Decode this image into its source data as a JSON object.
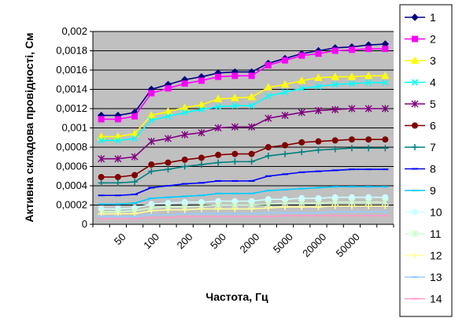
{
  "chart_data": {
    "type": "line",
    "xlabel": "Частота, Гц",
    "ylabel": "Активна складова провідності, См",
    "ylim": [
      0,
      0.002
    ],
    "ytick_values": [
      0,
      0.0002,
      0.0004,
      0.0006,
      0.0008,
      0.001,
      0.0012,
      0.0014,
      0.0016,
      0.0018,
      0.002
    ],
    "ytick_labels": [
      "0",
      "0,0002",
      "0,0004",
      "0,0006",
      "0,0008",
      "0,001",
      "0,0012",
      "0,0014",
      "0,0016",
      "0,0018",
      "0,002"
    ],
    "point_count": 18,
    "x_tick_labels": [
      "50",
      "100",
      "200",
      "500",
      "2000",
      "5000",
      "20000",
      "50000"
    ],
    "x_tick_positions": [
      1,
      3,
      5,
      7,
      9,
      11,
      13,
      15
    ],
    "grid": "horizontal",
    "plot_background": "#c0c0c0",
    "legend_position": "right",
    "series": [
      {
        "name": "1",
        "color": "#000080",
        "marker": "diamond",
        "values": [
          0.00113,
          0.00113,
          0.00116,
          0.0014,
          0.00145,
          0.0015,
          0.00153,
          0.00157,
          0.00158,
          0.00158,
          0.00167,
          0.00172,
          0.00177,
          0.0018,
          0.00183,
          0.00184,
          0.00186,
          0.00187
        ]
      },
      {
        "name": "2",
        "color": "#ff00ff",
        "marker": "square",
        "values": [
          0.00109,
          0.00109,
          0.00112,
          0.00136,
          0.00141,
          0.00146,
          0.00149,
          0.00153,
          0.00154,
          0.00154,
          0.00165,
          0.0017,
          0.00175,
          0.00177,
          0.0018,
          0.00181,
          0.00182,
          0.00182
        ]
      },
      {
        "name": "3",
        "color": "#ffff00",
        "marker": "triangle",
        "values": [
          0.00091,
          0.00091,
          0.00094,
          0.00113,
          0.00117,
          0.00121,
          0.00124,
          0.0013,
          0.00131,
          0.00132,
          0.00142,
          0.00145,
          0.00149,
          0.00152,
          0.00153,
          0.00153,
          0.00154,
          0.00154
        ]
      },
      {
        "name": "4",
        "color": "#00ffff",
        "marker": "x",
        "values": [
          0.00087,
          0.00087,
          0.00089,
          0.00108,
          0.00112,
          0.00116,
          0.00119,
          0.00122,
          0.00123,
          0.00123,
          0.00133,
          0.00137,
          0.00141,
          0.00143,
          0.00145,
          0.00146,
          0.00147,
          0.00147
        ]
      },
      {
        "name": "5",
        "color": "#800080",
        "marker": "star",
        "values": [
          0.00068,
          0.00068,
          0.0007,
          0.00086,
          0.00089,
          0.00093,
          0.00095,
          0.001,
          0.00101,
          0.00101,
          0.0011,
          0.00113,
          0.00116,
          0.00118,
          0.00119,
          0.0012,
          0.0012,
          0.0012
        ]
      },
      {
        "name": "6",
        "color": "#800000",
        "marker": "circle",
        "values": [
          0.00049,
          0.00049,
          0.00051,
          0.00062,
          0.00064,
          0.00067,
          0.00069,
          0.00072,
          0.00073,
          0.00073,
          0.0008,
          0.00082,
          0.00085,
          0.00086,
          0.00087,
          0.00088,
          0.00088,
          0.00088
        ]
      },
      {
        "name": "7",
        "color": "#008080",
        "marker": "plus",
        "values": [
          0.00043,
          0.00043,
          0.00044,
          0.00055,
          0.00057,
          0.0006,
          0.00062,
          0.00064,
          0.00065,
          0.00065,
          0.00071,
          0.00073,
          0.00075,
          0.00077,
          0.00078,
          0.00079,
          0.00079,
          0.00079
        ]
      },
      {
        "name": "8",
        "color": "#0000ff",
        "marker": "dash",
        "values": [
          0.0003,
          0.0003,
          0.00031,
          0.00038,
          0.0004,
          0.00042,
          0.00043,
          0.00045,
          0.00045,
          0.00045,
          0.0005,
          0.00052,
          0.00054,
          0.00055,
          0.00056,
          0.00057,
          0.00057,
          0.00057
        ]
      },
      {
        "name": "9",
        "color": "#00ccff",
        "marker": "dash",
        "values": [
          0.00021,
          0.00021,
          0.00022,
          0.00027,
          0.00028,
          0.00029,
          0.0003,
          0.00032,
          0.00032,
          0.00032,
          0.00035,
          0.00036,
          0.00037,
          0.00038,
          0.00039,
          0.00039,
          0.00039,
          0.00039
        ]
      },
      {
        "name": "10",
        "color": "#ccffff",
        "marker": "circle",
        "values": [
          0.00016,
          0.00016,
          0.00017,
          0.00021,
          0.00022,
          0.00023,
          0.00023,
          0.00024,
          0.00024,
          0.00024,
          0.00026,
          0.00026,
          0.00027,
          0.00027,
          0.00028,
          0.00028,
          0.00028,
          0.00028
        ]
      },
      {
        "name": "11",
        "color": "#ccffcc",
        "marker": "star",
        "values": [
          0.00013,
          0.00013,
          0.00014,
          0.00017,
          0.00018,
          0.00018,
          0.00019,
          0.0002,
          0.0002,
          0.0002,
          0.00021,
          0.00022,
          0.00022,
          0.00022,
          0.00023,
          0.00023,
          0.00023,
          0.00023
        ]
      },
      {
        "name": "12",
        "color": "#ffff99",
        "marker": "plus",
        "values": [
          0.00011,
          0.00011,
          0.00011,
          0.00014,
          0.00015,
          0.00015,
          0.00016,
          0.00016,
          0.00016,
          0.00016,
          0.00017,
          0.00018,
          0.00018,
          0.00018,
          0.00019,
          0.00019,
          0.00019,
          0.00019
        ]
      },
      {
        "name": "13",
        "color": "#99ccff",
        "marker": "dash",
        "values": [
          8e-05,
          8e-05,
          8e-05,
          0.0001,
          0.0001,
          0.00011,
          0.00011,
          0.00011,
          0.00011,
          0.00011,
          0.00012,
          0.00012,
          0.00012,
          0.00012,
          0.00013,
          0.00013,
          0.00013,
          0.00013
        ]
      },
      {
        "name": "14",
        "color": "#ff99cc",
        "marker": "dash",
        "values": [
          6e-05,
          6e-05,
          6e-05,
          7e-05,
          7e-05,
          8e-05,
          8e-05,
          8e-05,
          8e-05,
          8e-05,
          8e-05,
          9e-05,
          9e-05,
          9e-05,
          9e-05,
          9e-05,
          9e-05,
          9e-05
        ]
      }
    ]
  }
}
